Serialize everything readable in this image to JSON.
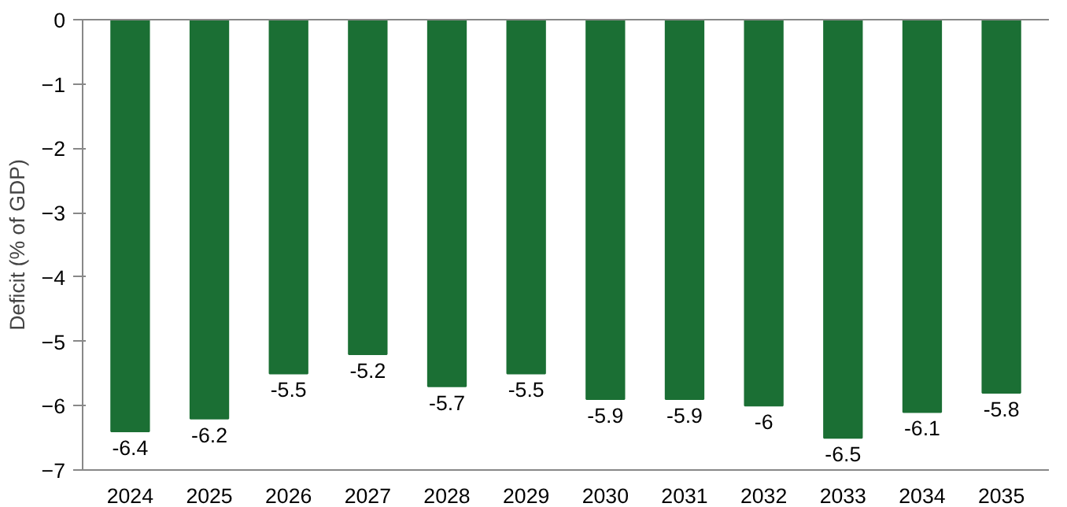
{
  "chart_data": {
    "type": "bar",
    "ylabel": "Deficit (% of GDP)",
    "categories": [
      "2024",
      "2025",
      "2026",
      "2027",
      "2028",
      "2029",
      "2030",
      "2031",
      "2032",
      "2033",
      "2034",
      "2035"
    ],
    "values": [
      -6.4,
      -6.2,
      -5.5,
      -5.2,
      -5.7,
      -5.5,
      -5.9,
      -5.9,
      -6,
      -6.5,
      -6.1,
      -5.8
    ],
    "color": "#1b6f34",
    "ylim": [
      -7,
      0
    ],
    "yticks": [
      -7,
      -6,
      -5,
      -4,
      -3,
      -2,
      -1,
      0
    ],
    "data_labels": true,
    "grid": false
  }
}
